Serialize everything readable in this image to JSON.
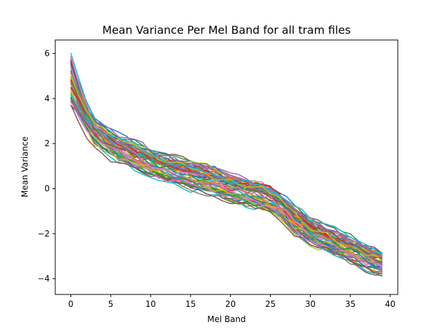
{
  "chart_data": {
    "type": "line",
    "title": "Mean Variance Per Mel Band for all tram files",
    "xlabel": "Mel Band",
    "ylabel": "Mean Variance",
    "xlim": [
      -1.95,
      40.95
    ],
    "ylim": [
      -4.7,
      6.6
    ],
    "xticks": [
      0,
      5,
      10,
      15,
      20,
      25,
      30,
      35,
      40
    ],
    "yticks": [
      -4,
      -2,
      0,
      2,
      4,
      6
    ],
    "xtick_labels": [
      "0",
      "5",
      "10",
      "15",
      "20",
      "25",
      "30",
      "35",
      "40"
    ],
    "ytick_labels": [
      "−4",
      "−2",
      "0",
      "2",
      "4",
      "6"
    ],
    "grid": false,
    "legend": "none",
    "n_bands": 40,
    "mean_curve": {
      "x": [
        0,
        1,
        2,
        3,
        4,
        5,
        6,
        7,
        8,
        9,
        10,
        11,
        12,
        13,
        14,
        15,
        16,
        17,
        18,
        19,
        20,
        21,
        22,
        23,
        24,
        25,
        26,
        27,
        28,
        29,
        30,
        31,
        32,
        33,
        34,
        35,
        36,
        37,
        38,
        39
      ],
      "y": [
        4.9,
        4.0,
        3.2,
        2.6,
        2.3,
        2.0,
        1.8,
        1.65,
        1.5,
        1.35,
        1.2,
        1.05,
        0.95,
        0.85,
        0.75,
        0.65,
        0.55,
        0.45,
        0.35,
        0.2,
        0.05,
        -0.05,
        -0.15,
        -0.2,
        -0.3,
        -0.45,
        -0.7,
        -1.0,
        -1.35,
        -1.6,
        -1.85,
        -2.05,
        -2.2,
        -2.4,
        -2.55,
        -2.7,
        -2.85,
        -3.0,
        -3.15,
        -3.3
      ]
    },
    "series_count": 60,
    "series_spread": 0.55,
    "colors": [
      "#1f77b4",
      "#ff7f0e",
      "#2ca02c",
      "#d62728",
      "#9467bd",
      "#8c564b",
      "#e377c2",
      "#7f7f7f",
      "#bcbd22",
      "#17becf"
    ]
  }
}
